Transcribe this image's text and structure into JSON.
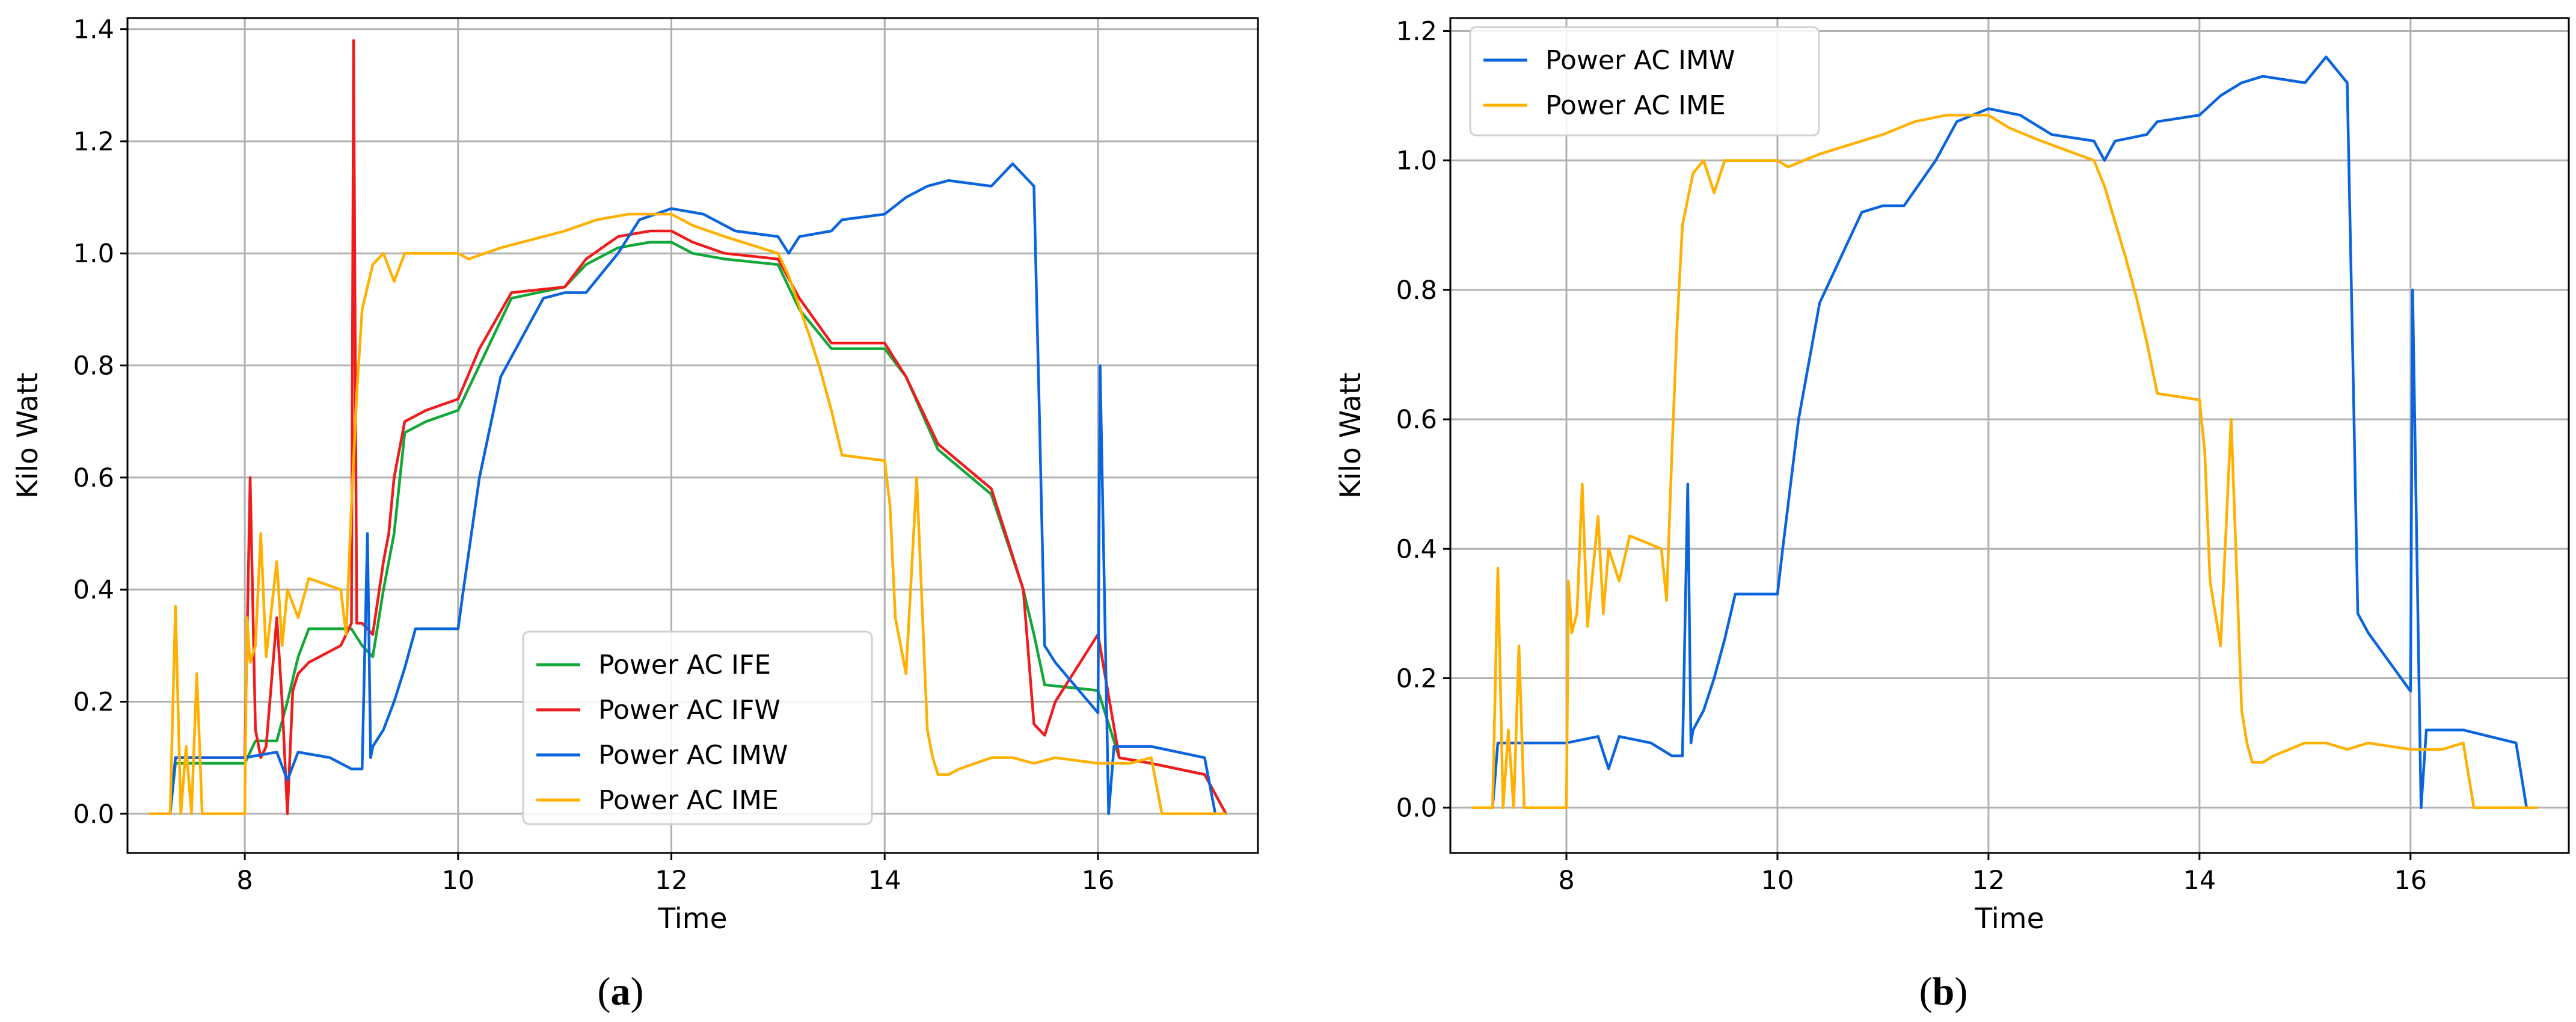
{
  "figure": {
    "captions": [
      {
        "open": "(",
        "letter": "a",
        "close": ")"
      },
      {
        "open": "(",
        "letter": "b",
        "close": ")"
      }
    ]
  },
  "colors": {
    "IFE": "#12a838",
    "IFW": "#ee1c1c",
    "IMW": "#0a64dc",
    "IME": "#ffb000",
    "grid": "#b0b0b0"
  },
  "chart_data": [
    {
      "type": "line",
      "panel": "a",
      "title": "",
      "xlabel": "Time",
      "ylabel": "Kilo Watt",
      "xlim": [
        6.9,
        17.5
      ],
      "ylim": [
        -0.07,
        1.42
      ],
      "xticks": [
        8,
        10,
        12,
        14,
        16
      ],
      "xtick_labels": [
        "8",
        "10",
        "12",
        "14",
        "16"
      ],
      "yticks": [
        0.0,
        0.2,
        0.4,
        0.6,
        0.8,
        1.0,
        1.2,
        1.4
      ],
      "ytick_labels": [
        "0.0",
        "0.2",
        "0.4",
        "0.6",
        "0.8",
        "1.0",
        "1.2",
        "1.4"
      ],
      "grid": true,
      "legend_position": "lower-center",
      "legend": [
        "Power AC IFE",
        "Power AC IFW",
        "Power AC IMW",
        "Power AC IME"
      ],
      "series": [
        {
          "name": "Power AC IFE",
          "key": "IFE",
          "x": [
            7.1,
            7.3,
            7.35,
            7.4,
            7.5,
            8.0,
            8.1,
            8.2,
            8.3,
            8.4,
            8.5,
            8.6,
            9.0,
            9.1,
            9.2,
            9.3,
            9.4,
            9.5,
            9.7,
            10.0,
            10.2,
            10.5,
            11.0,
            11.2,
            11.5,
            11.8,
            12.0,
            12.2,
            12.5,
            13.0,
            13.2,
            13.5,
            14.0,
            14.2,
            14.5,
            15.0,
            15.3,
            15.4,
            15.5,
            16.0,
            16.2,
            16.5,
            17.0,
            17.2
          ],
          "y": [
            0.0,
            0.0,
            0.09,
            0.09,
            0.09,
            0.09,
            0.13,
            0.13,
            0.13,
            0.2,
            0.28,
            0.33,
            0.33,
            0.3,
            0.28,
            0.4,
            0.5,
            0.68,
            0.7,
            0.72,
            0.8,
            0.92,
            0.94,
            0.98,
            1.01,
            1.02,
            1.02,
            1.0,
            0.99,
            0.98,
            0.9,
            0.83,
            0.83,
            0.78,
            0.65,
            0.57,
            0.4,
            0.32,
            0.23,
            0.22,
            0.1,
            0.09,
            0.07,
            0.0
          ]
        },
        {
          "name": "Power AC IFW",
          "key": "IFW",
          "x": [
            7.1,
            7.3,
            7.35,
            7.4,
            7.5,
            8.0,
            8.05,
            8.1,
            8.15,
            8.2,
            8.3,
            8.35,
            8.4,
            8.45,
            8.5,
            8.6,
            8.9,
            9.0,
            9.02,
            9.05,
            9.1,
            9.2,
            9.3,
            9.35,
            9.4,
            9.5,
            9.7,
            10.0,
            10.2,
            10.5,
            11.0,
            11.2,
            11.5,
            11.8,
            12.0,
            12.2,
            12.5,
            13.0,
            13.2,
            13.5,
            14.0,
            14.2,
            14.5,
            15.0,
            15.3,
            15.4,
            15.5,
            15.6,
            16.0,
            16.2,
            16.5,
            17.0,
            17.2
          ],
          "y": [
            0.0,
            0.0,
            0.1,
            0.1,
            0.1,
            0.1,
            0.6,
            0.15,
            0.1,
            0.12,
            0.35,
            0.2,
            0.0,
            0.22,
            0.25,
            0.27,
            0.3,
            0.34,
            1.38,
            0.34,
            0.34,
            0.32,
            0.45,
            0.5,
            0.6,
            0.7,
            0.72,
            0.74,
            0.83,
            0.93,
            0.94,
            0.99,
            1.03,
            1.04,
            1.04,
            1.02,
            1.0,
            0.99,
            0.92,
            0.84,
            0.84,
            0.78,
            0.66,
            0.58,
            0.4,
            0.16,
            0.14,
            0.2,
            0.32,
            0.1,
            0.09,
            0.07,
            0.0
          ]
        },
        {
          "name": "Power AC IMW",
          "key": "IMW",
          "x": [
            7.1,
            7.3,
            7.35,
            7.4,
            7.5,
            8.0,
            8.3,
            8.4,
            8.5,
            8.8,
            9.0,
            9.1,
            9.15,
            9.18,
            9.2,
            9.3,
            9.4,
            9.5,
            9.6,
            9.7,
            10.0,
            10.05,
            10.2,
            10.4,
            10.6,
            10.8,
            11.0,
            11.2,
            11.5,
            11.7,
            12.0,
            12.3,
            12.6,
            13.0,
            13.1,
            13.2,
            13.5,
            13.6,
            14.0,
            14.2,
            14.4,
            14.6,
            15.0,
            15.2,
            15.4,
            15.45,
            15.5,
            15.6,
            16.0,
            16.02,
            16.1,
            16.15,
            16.2,
            16.5,
            17.0,
            17.1,
            17.2
          ],
          "y": [
            0.0,
            0.0,
            0.1,
            0.1,
            0.1,
            0.1,
            0.11,
            0.06,
            0.11,
            0.1,
            0.08,
            0.08,
            0.5,
            0.1,
            0.12,
            0.15,
            0.2,
            0.26,
            0.33,
            0.33,
            0.33,
            0.4,
            0.6,
            0.78,
            0.85,
            0.92,
            0.93,
            0.93,
            1.0,
            1.06,
            1.08,
            1.07,
            1.04,
            1.03,
            1.0,
            1.03,
            1.04,
            1.06,
            1.07,
            1.1,
            1.12,
            1.13,
            1.12,
            1.16,
            1.12,
            0.72,
            0.3,
            0.27,
            0.18,
            0.8,
            0.0,
            0.12,
            0.12,
            0.12,
            0.1,
            0.0,
            0.0
          ]
        },
        {
          "name": "Power AC IME",
          "key": "IME",
          "x": [
            7.1,
            7.3,
            7.35,
            7.4,
            7.45,
            7.5,
            7.55,
            7.6,
            7.7,
            8.0,
            8.02,
            8.05,
            8.1,
            8.15,
            8.2,
            8.3,
            8.35,
            8.4,
            8.5,
            8.6,
            8.9,
            8.95,
            9.0,
            9.05,
            9.1,
            9.2,
            9.3,
            9.4,
            9.5,
            9.6,
            10.0,
            10.1,
            10.4,
            10.8,
            11.0,
            11.3,
            11.6,
            12.0,
            12.2,
            12.5,
            13.0,
            13.1,
            13.3,
            13.4,
            13.5,
            13.6,
            14.0,
            14.05,
            14.1,
            14.2,
            14.3,
            14.4,
            14.45,
            14.5,
            14.6,
            14.7,
            15.0,
            15.2,
            15.4,
            15.6,
            16.0,
            16.3,
            16.5,
            16.6,
            17.2
          ],
          "y": [
            0.0,
            0.0,
            0.37,
            0.0,
            0.12,
            0.0,
            0.25,
            0.0,
            0.0,
            0.0,
            0.35,
            0.27,
            0.3,
            0.5,
            0.28,
            0.45,
            0.3,
            0.4,
            0.35,
            0.42,
            0.4,
            0.32,
            0.55,
            0.75,
            0.9,
            0.98,
            1.0,
            0.95,
            1.0,
            1.0,
            1.0,
            0.99,
            1.01,
            1.03,
            1.04,
            1.06,
            1.07,
            1.07,
            1.05,
            1.03,
            1.0,
            0.96,
            0.85,
            0.79,
            0.72,
            0.64,
            0.63,
            0.55,
            0.35,
            0.25,
            0.6,
            0.15,
            0.1,
            0.07,
            0.07,
            0.08,
            0.1,
            0.1,
            0.09,
            0.1,
            0.09,
            0.09,
            0.1,
            0.0,
            0.0
          ]
        }
      ]
    },
    {
      "type": "line",
      "panel": "b",
      "title": "",
      "xlabel": "Time",
      "ylabel": "Kilo Watt",
      "xlim": [
        6.9,
        17.5
      ],
      "ylim": [
        -0.07,
        1.22
      ],
      "xticks": [
        8,
        10,
        12,
        14,
        16
      ],
      "xtick_labels": [
        "8",
        "10",
        "12",
        "14",
        "16"
      ],
      "yticks": [
        0.0,
        0.2,
        0.4,
        0.6,
        0.8,
        1.0,
        1.2
      ],
      "ytick_labels": [
        "0.0",
        "0.2",
        "0.4",
        "0.6",
        "0.8",
        "1.0",
        "1.2"
      ],
      "grid": true,
      "legend_position": "top-left",
      "legend": [
        "Power AC IMW",
        "Power AC IME"
      ],
      "series": [
        {
          "name": "Power AC IMW",
          "key": "IMW",
          "x": [
            7.1,
            7.3,
            7.35,
            7.4,
            7.5,
            8.0,
            8.3,
            8.4,
            8.5,
            8.8,
            9.0,
            9.1,
            9.15,
            9.18,
            9.2,
            9.3,
            9.4,
            9.5,
            9.6,
            9.7,
            10.0,
            10.05,
            10.2,
            10.4,
            10.6,
            10.8,
            11.0,
            11.2,
            11.5,
            11.7,
            12.0,
            12.3,
            12.6,
            13.0,
            13.1,
            13.2,
            13.5,
            13.6,
            14.0,
            14.2,
            14.4,
            14.6,
            15.0,
            15.2,
            15.4,
            15.45,
            15.5,
            15.6,
            16.0,
            16.02,
            16.1,
            16.15,
            16.2,
            16.5,
            17.0,
            17.1,
            17.2
          ],
          "y": [
            0.0,
            0.0,
            0.1,
            0.1,
            0.1,
            0.1,
            0.11,
            0.06,
            0.11,
            0.1,
            0.08,
            0.08,
            0.5,
            0.1,
            0.12,
            0.15,
            0.2,
            0.26,
            0.33,
            0.33,
            0.33,
            0.4,
            0.6,
            0.78,
            0.85,
            0.92,
            0.93,
            0.93,
            1.0,
            1.06,
            1.08,
            1.07,
            1.04,
            1.03,
            1.0,
            1.03,
            1.04,
            1.06,
            1.07,
            1.1,
            1.12,
            1.13,
            1.12,
            1.16,
            1.12,
            0.72,
            0.3,
            0.27,
            0.18,
            0.8,
            0.0,
            0.12,
            0.12,
            0.12,
            0.1,
            0.0,
            0.0
          ]
        },
        {
          "name": "Power AC IME",
          "key": "IME",
          "x": [
            7.1,
            7.3,
            7.35,
            7.4,
            7.45,
            7.5,
            7.55,
            7.6,
            7.7,
            8.0,
            8.02,
            8.05,
            8.1,
            8.15,
            8.2,
            8.3,
            8.35,
            8.4,
            8.5,
            8.6,
            8.9,
            8.95,
            9.0,
            9.05,
            9.1,
            9.2,
            9.3,
            9.4,
            9.5,
            9.6,
            10.0,
            10.1,
            10.4,
            10.8,
            11.0,
            11.3,
            11.6,
            12.0,
            12.2,
            12.5,
            13.0,
            13.1,
            13.3,
            13.4,
            13.5,
            13.6,
            14.0,
            14.05,
            14.1,
            14.2,
            14.3,
            14.4,
            14.45,
            14.5,
            14.6,
            14.7,
            15.0,
            15.2,
            15.4,
            15.6,
            16.0,
            16.3,
            16.5,
            16.6,
            17.2
          ],
          "y": [
            0.0,
            0.0,
            0.37,
            0.0,
            0.12,
            0.0,
            0.25,
            0.0,
            0.0,
            0.0,
            0.35,
            0.27,
            0.3,
            0.5,
            0.28,
            0.45,
            0.3,
            0.4,
            0.35,
            0.42,
            0.4,
            0.32,
            0.55,
            0.75,
            0.9,
            0.98,
            1.0,
            0.95,
            1.0,
            1.0,
            1.0,
            0.99,
            1.01,
            1.03,
            1.04,
            1.06,
            1.07,
            1.07,
            1.05,
            1.03,
            1.0,
            0.96,
            0.85,
            0.79,
            0.72,
            0.64,
            0.63,
            0.55,
            0.35,
            0.25,
            0.6,
            0.15,
            0.1,
            0.07,
            0.07,
            0.08,
            0.1,
            0.1,
            0.09,
            0.1,
            0.09,
            0.09,
            0.1,
            0.0,
            0.0
          ]
        }
      ]
    }
  ]
}
